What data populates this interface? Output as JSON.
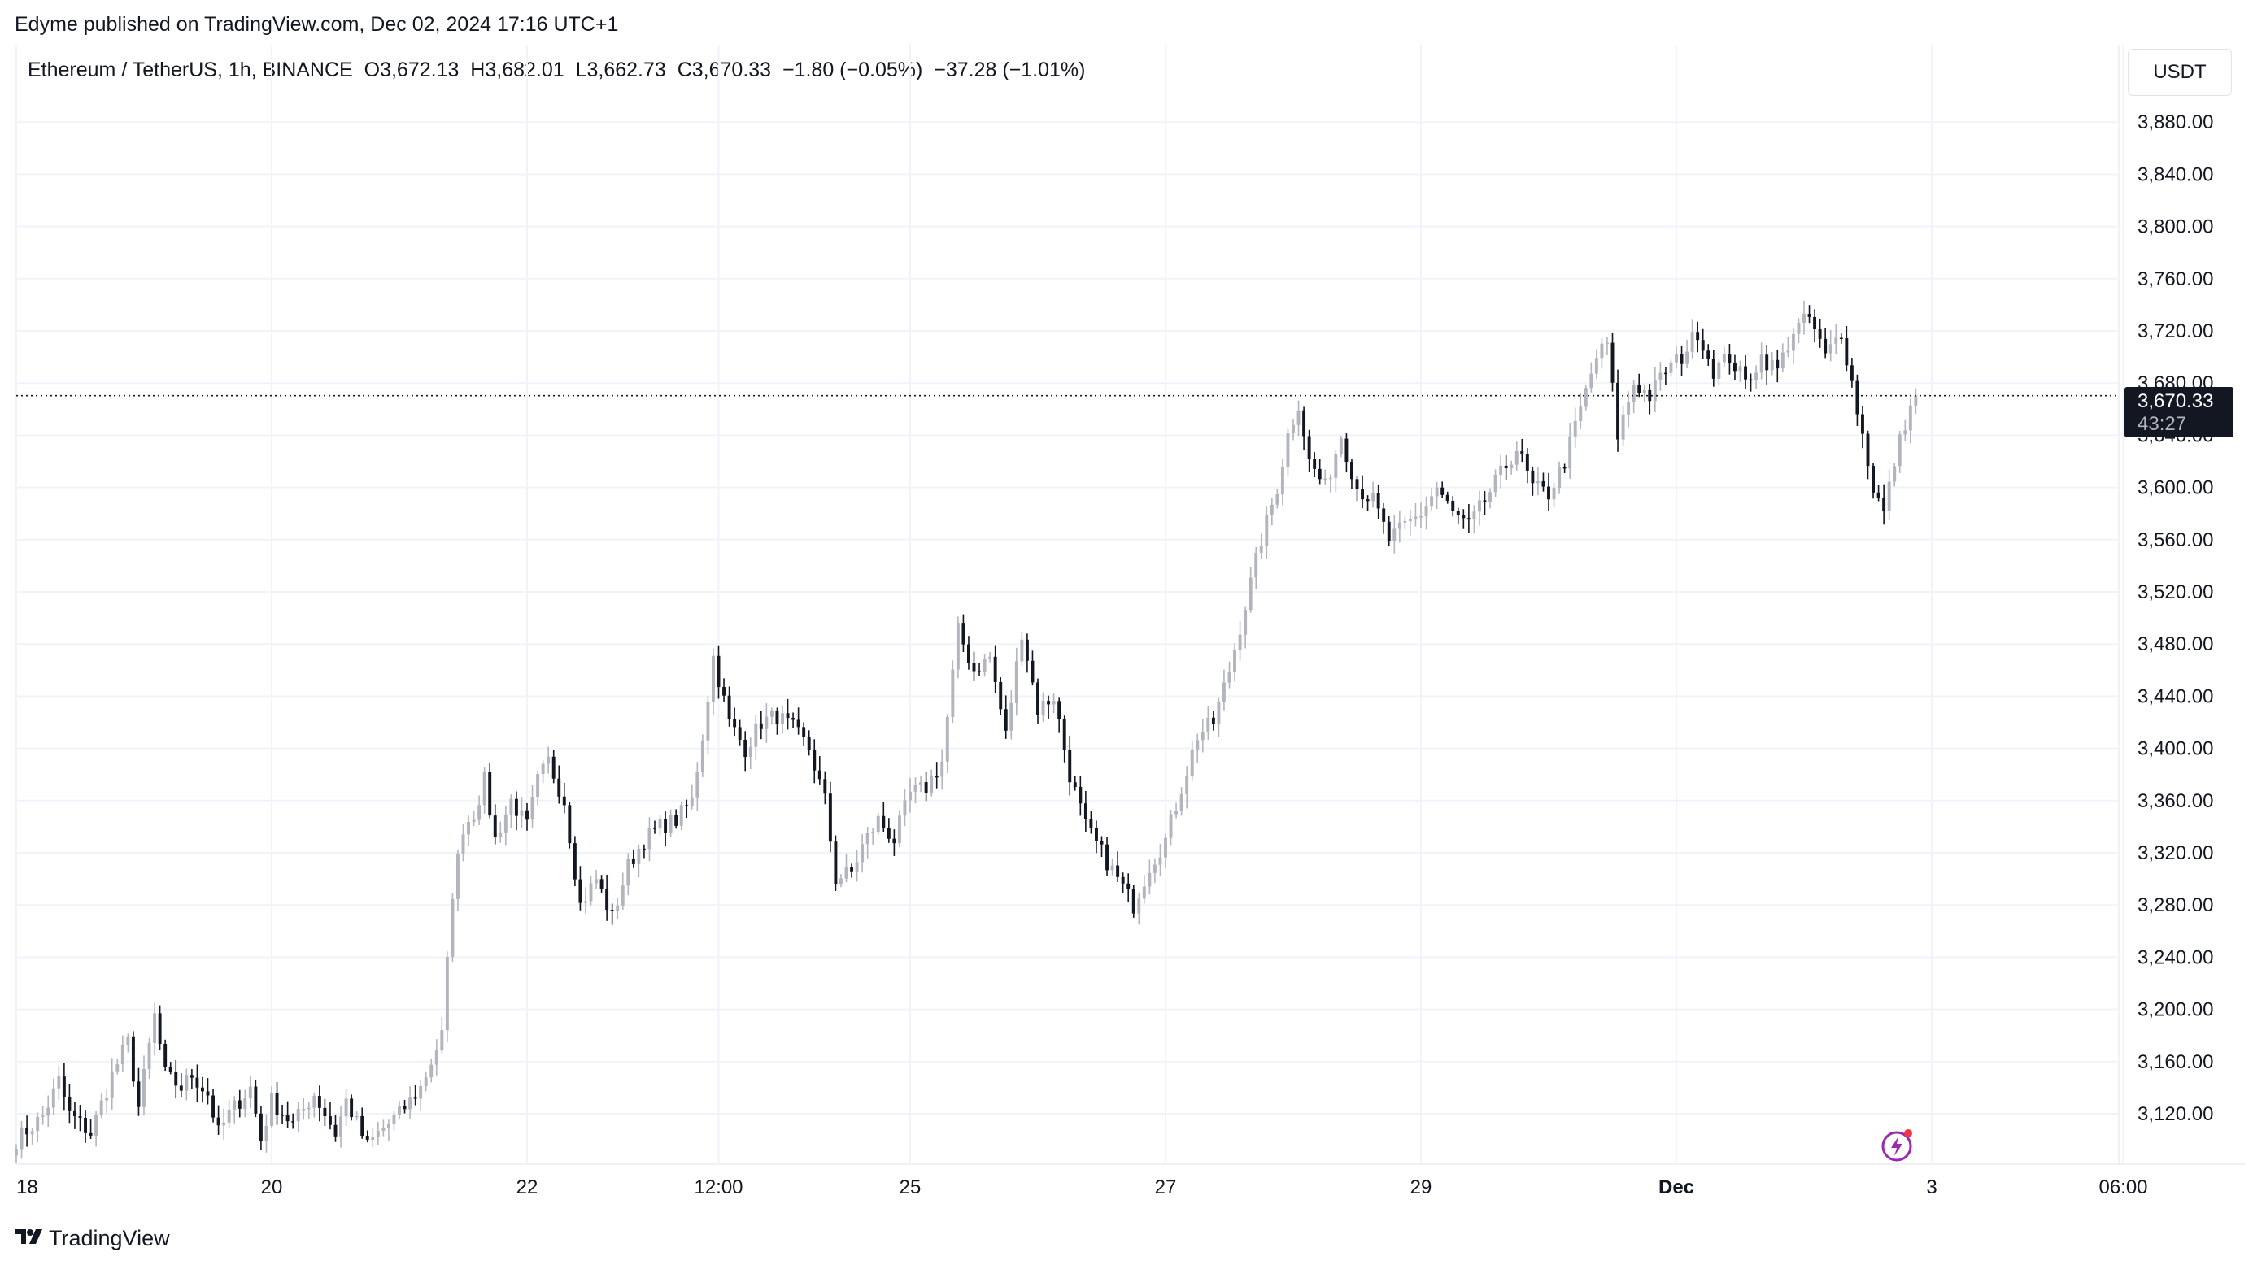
{
  "publisher": "Edyme published on TradingView.com, Dec 02, 2024 17:16 UTC+1",
  "legend": {
    "symbol": "Ethereum / TetherUS, 1h, BINANCE",
    "open": "O3,672.13",
    "high": "H3,682.01",
    "low": "L3,662.73",
    "close": "C3,670.33",
    "change": "−1.80 (−0.05%)",
    "change2": "−37.28 (−1.01%)"
  },
  "currency": "USDT",
  "last_price": {
    "value": "3,670.33",
    "countdown": "43:27"
  },
  "branding": "TradingView",
  "colors": {
    "up": "#b2b5be",
    "down": "#131722",
    "grid": "#f0f3fa",
    "axis_text": "#131722",
    "lightning": "#9c27b0"
  },
  "icons": [
    "tradingview-logo-icon",
    "lightning-icon"
  ],
  "chart_data": {
    "type": "candlestick",
    "title": "Ethereum / TetherUS, 1h, BINANCE",
    "ylim": [
      3090,
      3915
    ],
    "y_ticks": [
      3120,
      3160,
      3200,
      3240,
      3280,
      3320,
      3360,
      3400,
      3440,
      3480,
      3520,
      3560,
      3600,
      3640,
      3680,
      3720,
      3760,
      3800,
      3840,
      3880
    ],
    "y_tick_labels": [
      "3,120.00",
      "3,160.00",
      "3,200.00",
      "3,240.00",
      "3,280.00",
      "3,320.00",
      "3,360.00",
      "3,400.00",
      "3,440.00",
      "3,480.00",
      "3,520.00",
      "3,560.00",
      "3,600.00",
      "3,640.00",
      "3,680.00",
      "3,720.00",
      "3,760.00",
      "3,800.00",
      "3,840.00",
      "3,880.00"
    ],
    "x_tick_labels": [
      "18",
      "20",
      "22",
      "12:00",
      "25",
      "27",
      "29",
      "Dec",
      "3",
      "06:00"
    ],
    "x_tick_hours": [
      0,
      48,
      96,
      132,
      168,
      216,
      264,
      312,
      360,
      396
    ],
    "last_close": 3670.33,
    "grid": true,
    "anchors": [
      [
        0,
        3100
      ],
      [
        5,
        3118
      ],
      [
        8,
        3145
      ],
      [
        10,
        3120
      ],
      [
        14,
        3105
      ],
      [
        18,
        3150
      ],
      [
        21,
        3175
      ],
      [
        23,
        3125
      ],
      [
        26,
        3195
      ],
      [
        28,
        3150
      ],
      [
        31,
        3140
      ],
      [
        33,
        3150
      ],
      [
        36,
        3135
      ],
      [
        38,
        3105
      ],
      [
        40,
        3120
      ],
      [
        44,
        3140
      ],
      [
        46,
        3100
      ],
      [
        48,
        3130
      ],
      [
        52,
        3112
      ],
      [
        56,
        3135
      ],
      [
        60,
        3105
      ],
      [
        62,
        3130
      ],
      [
        66,
        3095
      ],
      [
        68,
        3105
      ],
      [
        72,
        3120
      ],
      [
        76,
        3140
      ],
      [
        78,
        3160
      ],
      [
        80,
        3180
      ],
      [
        82,
        3290
      ],
      [
        84,
        3340
      ],
      [
        86,
        3350
      ],
      [
        88,
        3375
      ],
      [
        90,
        3330
      ],
      [
        93,
        3360
      ],
      [
        96,
        3340
      ],
      [
        98,
        3375
      ],
      [
        100,
        3390
      ],
      [
        103,
        3360
      ],
      [
        106,
        3280
      ],
      [
        109,
        3300
      ],
      [
        112,
        3270
      ],
      [
        115,
        3310
      ],
      [
        118,
        3330
      ],
      [
        121,
        3340
      ],
      [
        124,
        3345
      ],
      [
        127,
        3360
      ],
      [
        129,
        3410
      ],
      [
        131,
        3470
      ],
      [
        134,
        3420
      ],
      [
        137,
        3400
      ],
      [
        140,
        3420
      ],
      [
        143,
        3425
      ],
      [
        146,
        3415
      ],
      [
        149,
        3400
      ],
      [
        152,
        3360
      ],
      [
        154,
        3300
      ],
      [
        157,
        3305
      ],
      [
        159,
        3325
      ],
      [
        162,
        3345
      ],
      [
        165,
        3330
      ],
      [
        168,
        3365
      ],
      [
        171,
        3370
      ],
      [
        174,
        3390
      ],
      [
        177,
        3490
      ],
      [
        180,
        3460
      ],
      [
        183,
        3470
      ],
      [
        186,
        3410
      ],
      [
        189,
        3490
      ],
      [
        192,
        3430
      ],
      [
        195,
        3440
      ],
      [
        198,
        3380
      ],
      [
        201,
        3340
      ],
      [
        204,
        3320
      ],
      [
        207,
        3300
      ],
      [
        210,
        3280
      ],
      [
        213,
        3310
      ],
      [
        216,
        3330
      ],
      [
        219,
        3370
      ],
      [
        222,
        3410
      ],
      [
        225,
        3420
      ],
      [
        228,
        3460
      ],
      [
        231,
        3510
      ],
      [
        234,
        3560
      ],
      [
        237,
        3600
      ],
      [
        239,
        3640
      ],
      [
        241,
        3665
      ],
      [
        243,
        3620
      ],
      [
        246,
        3600
      ],
      [
        249,
        3640
      ],
      [
        252,
        3600
      ],
      [
        255,
        3590
      ],
      [
        258,
        3560
      ],
      [
        261,
        3570
      ],
      [
        264,
        3580
      ],
      [
        267,
        3600
      ],
      [
        270,
        3580
      ],
      [
        273,
        3570
      ],
      [
        276,
        3590
      ],
      [
        279,
        3610
      ],
      [
        282,
        3630
      ],
      [
        285,
        3600
      ],
      [
        288,
        3595
      ],
      [
        291,
        3620
      ],
      [
        294,
        3660
      ],
      [
        297,
        3700
      ],
      [
        299,
        3710
      ],
      [
        301,
        3640
      ],
      [
        304,
        3680
      ],
      [
        307,
        3670
      ],
      [
        310,
        3690
      ],
      [
        313,
        3700
      ],
      [
        316,
        3720
      ],
      [
        319,
        3690
      ],
      [
        322,
        3700
      ],
      [
        325,
        3680
      ],
      [
        328,
        3700
      ],
      [
        331,
        3690
      ],
      [
        334,
        3720
      ],
      [
        337,
        3730
      ],
      [
        340,
        3700
      ],
      [
        343,
        3720
      ],
      [
        346,
        3660
      ],
      [
        349,
        3600
      ],
      [
        351,
        3580
      ],
      [
        353,
        3620
      ],
      [
        355,
        3650
      ],
      [
        357,
        3670.33
      ]
    ]
  }
}
